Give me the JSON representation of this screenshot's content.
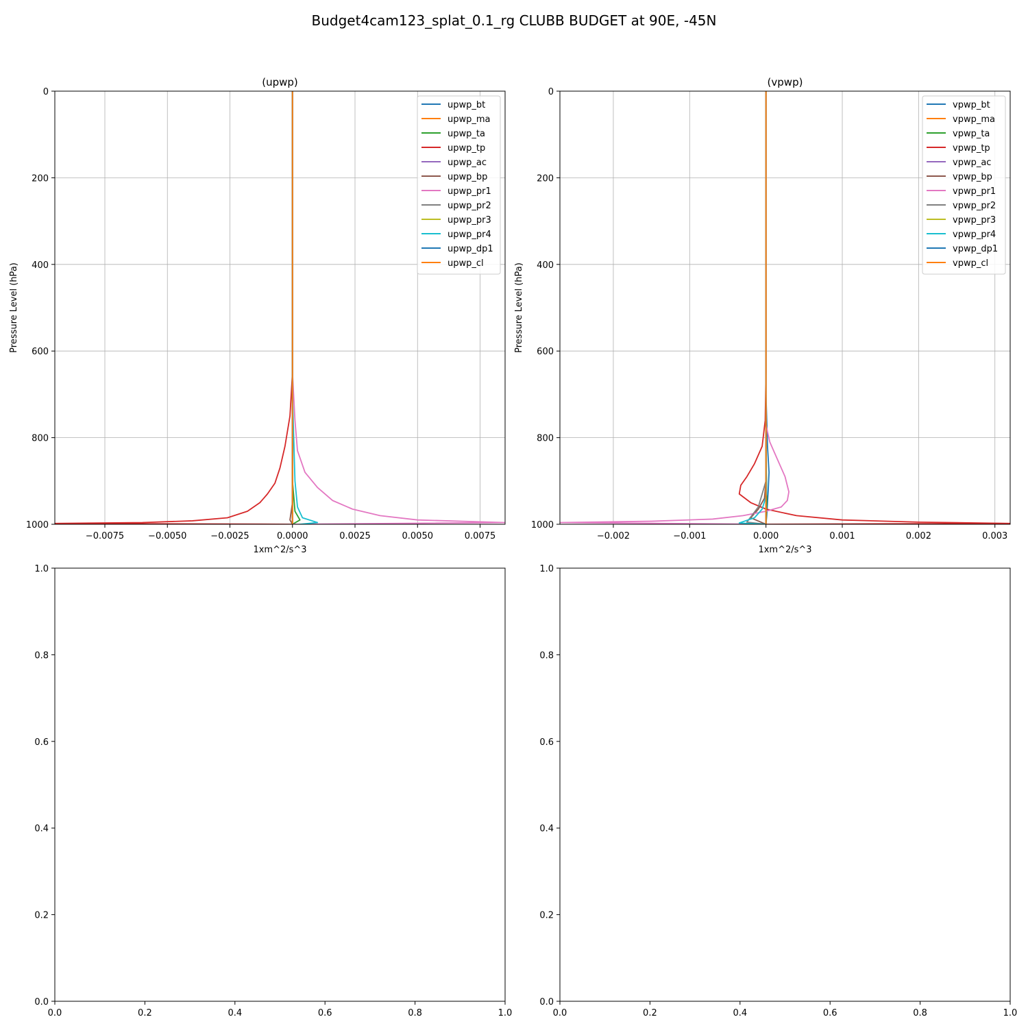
{
  "figure": {
    "suptitle": "Budget4cam123_splat_0.1_rg CLUBB BUDGET at 90E, -45N",
    "palette": {
      "bt": "#1f77b4",
      "ma": "#ff7f0e",
      "ta": "#2ca02c",
      "tp": "#d62728",
      "ac": "#9467bd",
      "bp": "#8c564b",
      "pr1": "#e377c2",
      "pr2": "#7f7f7f",
      "pr3": "#bcbd22",
      "pr4": "#17becf",
      "dp1": "#1f77b4",
      "cl": "#ff7f0e"
    }
  },
  "chart_data": [
    {
      "type": "line",
      "title": "(upwp)",
      "xlabel": "1xm^2/s^3",
      "ylabel": "Pressure Level (hPa)",
      "xlim": [
        -0.0095,
        0.0085
      ],
      "ylim": [
        1000,
        0
      ],
      "xticks": [
        -0.0075,
        -0.005,
        -0.0025,
        0.0,
        0.0025,
        0.005,
        0.0075
      ],
      "xtick_labels": [
        "−0.0075",
        "−0.0050",
        "−0.0025",
        "0.0000",
        "0.0025",
        "0.0050",
        "0.0075"
      ],
      "yticks": [
        0,
        200,
        400,
        600,
        800,
        1000
      ],
      "ytick_labels": [
        "0",
        "200",
        "400",
        "600",
        "800",
        "1000"
      ],
      "grid": true,
      "legend": "top-right",
      "series": [
        {
          "name": "upwp_bt",
          "color": "#1f77b4",
          "x": [
            0,
            0,
            0,
            0
          ],
          "y": [
            0,
            600,
            900,
            1000
          ]
        },
        {
          "name": "upwp_ma",
          "color": "#ff7f0e",
          "x": [
            0,
            0,
            0
          ],
          "y": [
            0,
            900,
            1000
          ]
        },
        {
          "name": "upwp_ta",
          "color": "#2ca02c",
          "x": [
            0,
            0,
            0.0001,
            0.0003,
            0
          ],
          "y": [
            0,
            900,
            970,
            990,
            1000
          ]
        },
        {
          "name": "upwp_tp",
          "color": "#d62728",
          "x": [
            0,
            0,
            -0.0001,
            -0.0003,
            -0.0005,
            -0.0007,
            -0.001,
            -0.0013,
            -0.0018,
            -0.0026,
            -0.004,
            -0.006,
            -0.0095,
            0.0
          ],
          "y": [
            0,
            650,
            750,
            820,
            870,
            905,
            930,
            950,
            970,
            985,
            992,
            996,
            998,
            1000
          ]
        },
        {
          "name": "upwp_ac",
          "color": "#9467bd",
          "x": [
            0,
            0,
            0
          ],
          "y": [
            0,
            900,
            1000
          ]
        },
        {
          "name": "upwp_bp",
          "color": "#8c564b",
          "x": [
            0,
            0,
            -0.0001,
            0
          ],
          "y": [
            0,
            950,
            990,
            1000
          ]
        },
        {
          "name": "upwp_pr1",
          "color": "#e377c2",
          "x": [
            0,
            0,
            0.0001,
            0.0002,
            0.0005,
            0.001,
            0.0016,
            0.0024,
            0.0035,
            0.005,
            0.0085,
            0.0
          ],
          "y": [
            0,
            650,
            760,
            830,
            880,
            915,
            945,
            965,
            980,
            990,
            996,
            1000
          ]
        },
        {
          "name": "upwp_pr2",
          "color": "#7f7f7f",
          "x": [
            0,
            0,
            0
          ],
          "y": [
            0,
            900,
            1000
          ]
        },
        {
          "name": "upwp_pr3",
          "color": "#bcbd22",
          "x": [
            0,
            0,
            0
          ],
          "y": [
            0,
            900,
            1000
          ]
        },
        {
          "name": "upwp_pr4",
          "color": "#17becf",
          "x": [
            0,
            0,
            0.0001,
            0.0002,
            0.0004,
            0.001,
            0.0003
          ],
          "y": [
            0,
            700,
            900,
            960,
            985,
            996,
            1000
          ]
        },
        {
          "name": "upwp_dp1",
          "color": "#1f77b4",
          "x": [
            0,
            0,
            0
          ],
          "y": [
            0,
            900,
            1000
          ]
        },
        {
          "name": "upwp_cl",
          "color": "#ff7f0e",
          "x": [
            0,
            0,
            0
          ],
          "y": [
            0,
            900,
            1000
          ]
        }
      ]
    },
    {
      "type": "line",
      "title": "(vpwp)",
      "xlabel": "1xm^2/s^3",
      "ylabel": "Pressure Level (hPa)",
      "xlim": [
        -0.0027,
        0.0032
      ],
      "ylim": [
        1000,
        0
      ],
      "xticks": [
        -0.002,
        -0.001,
        0.0,
        0.001,
        0.002,
        0.003
      ],
      "xtick_labels": [
        "−0.002",
        "−0.001",
        "0.000",
        "0.001",
        "0.002",
        "0.003"
      ],
      "yticks": [
        0,
        200,
        400,
        600,
        800,
        1000
      ],
      "ytick_labels": [
        "0",
        "200",
        "400",
        "600",
        "800",
        "1000"
      ],
      "grid": true,
      "legend": "top-right",
      "series": [
        {
          "name": "vpwp_bt",
          "color": "#1f77b4",
          "x": [
            0,
            0,
            2e-05,
            4e-05,
            3e-05,
            2e-05,
            1e-05,
            0
          ],
          "y": [
            0,
            700,
            820,
            880,
            920,
            950,
            980,
            1000
          ]
        },
        {
          "name": "vpwp_ma",
          "color": "#ff7f0e",
          "x": [
            0,
            0,
            0
          ],
          "y": [
            0,
            900,
            1000
          ]
        },
        {
          "name": "vpwp_ta",
          "color": "#2ca02c",
          "x": [
            0,
            0,
            1e-05,
            0
          ],
          "y": [
            0,
            800,
            950,
            1000
          ]
        },
        {
          "name": "vpwp_tp",
          "color": "#d62728",
          "x": [
            0,
            0,
            -1e-05,
            -5e-05,
            -0.00015,
            -0.00025,
            -0.00033,
            -0.00035,
            -0.0002,
            0.0,
            0.0004,
            0.001,
            0.002,
            0.0032,
            0.0
          ],
          "y": [
            0,
            650,
            760,
            820,
            860,
            890,
            910,
            930,
            950,
            965,
            980,
            990,
            995,
            998,
            1000
          ]
        },
        {
          "name": "vpwp_ac",
          "color": "#9467bd",
          "x": [
            0,
            0,
            0
          ],
          "y": [
            0,
            900,
            1000
          ]
        },
        {
          "name": "vpwp_bp",
          "color": "#8c564b",
          "x": [
            0,
            0,
            -2e-05,
            -0.0001,
            -0.0002,
            0
          ],
          "y": [
            0,
            900,
            940,
            965,
            985,
            1000
          ]
        },
        {
          "name": "vpwp_pr1",
          "color": "#e377c2",
          "x": [
            0,
            0,
            5e-05,
            0.00015,
            0.00025,
            0.0003,
            0.00028,
            0.0002,
            0.0,
            -0.0003,
            -0.0007,
            -0.0015,
            -0.0027,
            0.0
          ],
          "y": [
            0,
            770,
            810,
            850,
            890,
            925,
            945,
            960,
            970,
            980,
            988,
            993,
            996,
            1000
          ]
        },
        {
          "name": "vpwp_pr2",
          "color": "#7f7f7f",
          "x": [
            0,
            0,
            -0.0001,
            -0.00025,
            0
          ],
          "y": [
            0,
            900,
            960,
            995,
            1000
          ]
        },
        {
          "name": "vpwp_pr3",
          "color": "#bcbd22",
          "x": [
            0,
            0,
            0
          ],
          "y": [
            0,
            900,
            1000
          ]
        },
        {
          "name": "vpwp_pr4",
          "color": "#17becf",
          "x": [
            0,
            0,
            1e-05,
            -5e-05,
            -0.00015,
            -0.00035,
            0
          ],
          "y": [
            0,
            850,
            930,
            965,
            985,
            997,
            1000
          ]
        },
        {
          "name": "vpwp_dp1",
          "color": "#1f77b4",
          "x": [
            0,
            0,
            0
          ],
          "y": [
            0,
            900,
            1000
          ]
        },
        {
          "name": "vpwp_cl",
          "color": "#ff7f0e",
          "x": [
            0,
            0,
            0
          ],
          "y": [
            0,
            900,
            1000
          ]
        }
      ]
    },
    {
      "type": "line",
      "title": "",
      "xlim": [
        0,
        1
      ],
      "ylim": [
        0,
        1
      ],
      "xticks": [
        0.0,
        0.2,
        0.4,
        0.6,
        0.8,
        1.0
      ],
      "xtick_labels": [
        "0.0",
        "0.2",
        "0.4",
        "0.6",
        "0.8",
        "1.0"
      ],
      "yticks": [
        0.0,
        0.2,
        0.4,
        0.6,
        0.8,
        1.0
      ],
      "ytick_labels": [
        "0.0",
        "0.2",
        "0.4",
        "0.6",
        "0.8",
        "1.0"
      ],
      "grid": false,
      "series": []
    },
    {
      "type": "line",
      "title": "",
      "xlim": [
        0,
        1
      ],
      "ylim": [
        0,
        1
      ],
      "xticks": [
        0.0,
        0.2,
        0.4,
        0.6,
        0.8,
        1.0
      ],
      "xtick_labels": [
        "0.0",
        "0.2",
        "0.4",
        "0.6",
        "0.8",
        "1.0"
      ],
      "yticks": [
        0.0,
        0.2,
        0.4,
        0.6,
        0.8,
        1.0
      ],
      "ytick_labels": [
        "0.0",
        "0.2",
        "0.4",
        "0.6",
        "0.8",
        "1.0"
      ],
      "grid": false,
      "series": []
    }
  ]
}
